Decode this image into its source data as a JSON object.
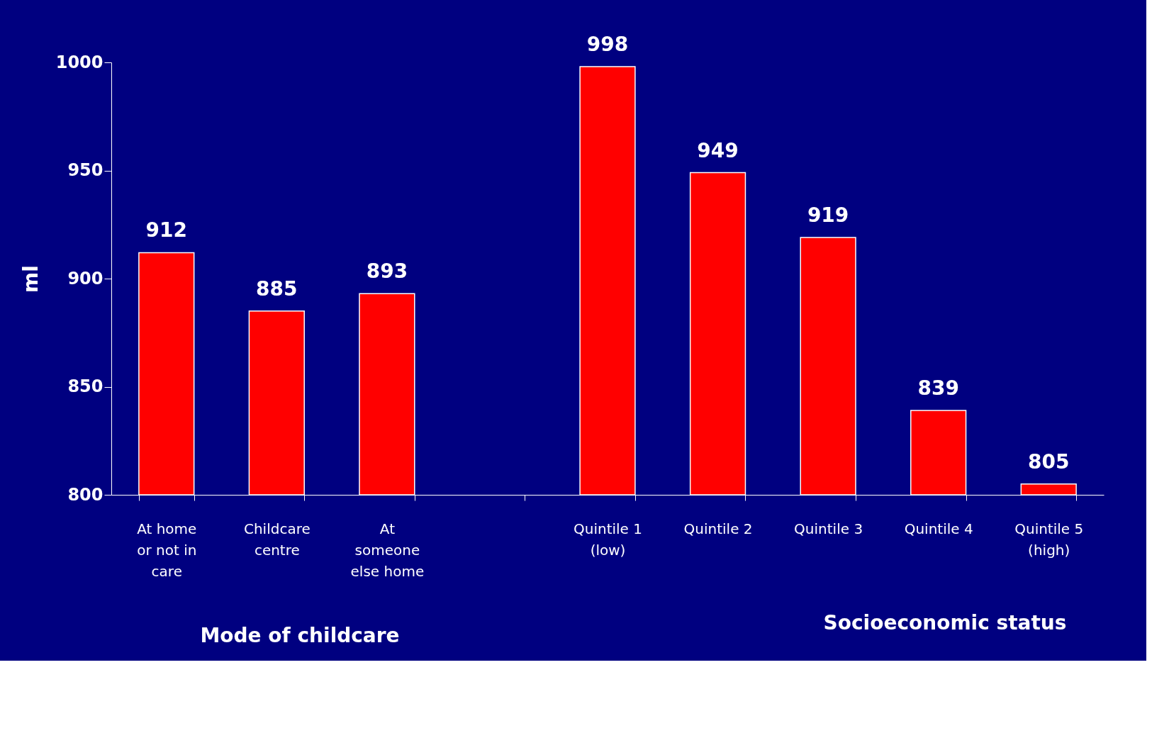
{
  "chart_data": {
    "type": "bar",
    "ylabel": "ml",
    "categories": [
      "At home\nor not in\ncare",
      "Childcare\ncentre",
      "At\nsomeone\nelse home",
      null,
      "Quintile 1\n(low)",
      "Quintile 2",
      "Quintile 3",
      "Quintile 4",
      "Quintile 5\n(high)"
    ],
    "values": [
      912,
      885,
      893,
      null,
      998,
      949,
      919,
      839,
      805
    ],
    "color": "#ff0000",
    "ylim": [
      800,
      1000
    ],
    "yticks": [
      800,
      850,
      900,
      950,
      1000
    ],
    "grid": false,
    "data_labels": true,
    "annotations": [
      "Mode of childcare",
      "Socioeconomic status"
    ]
  }
}
